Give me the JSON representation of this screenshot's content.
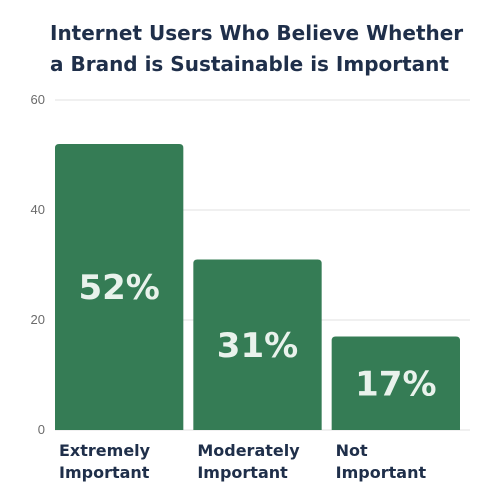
{
  "chart_data": {
    "type": "bar",
    "title": "Internet Users Who Believe Whether a Brand is Sustainable is Important",
    "categories": [
      "Extremely Important",
      "Moderately Important",
      "Not Important"
    ],
    "category_lines": [
      [
        "Extremely",
        "Important"
      ],
      [
        "Moderately",
        "Important"
      ],
      [
        "Not",
        "Important"
      ]
    ],
    "values": [
      52,
      31,
      17
    ],
    "data_labels": [
      "52%",
      "31%",
      "17%"
    ],
    "ylim": [
      0,
      60
    ],
    "yticks": [
      0,
      20,
      40,
      60
    ],
    "grid": true,
    "xlabel": "",
    "ylabel": "",
    "colors": {
      "bar": "#357c55",
      "grid": "#e2e2e2",
      "title": "#1f2f4a",
      "data_label": "#e9f2ec"
    }
  }
}
